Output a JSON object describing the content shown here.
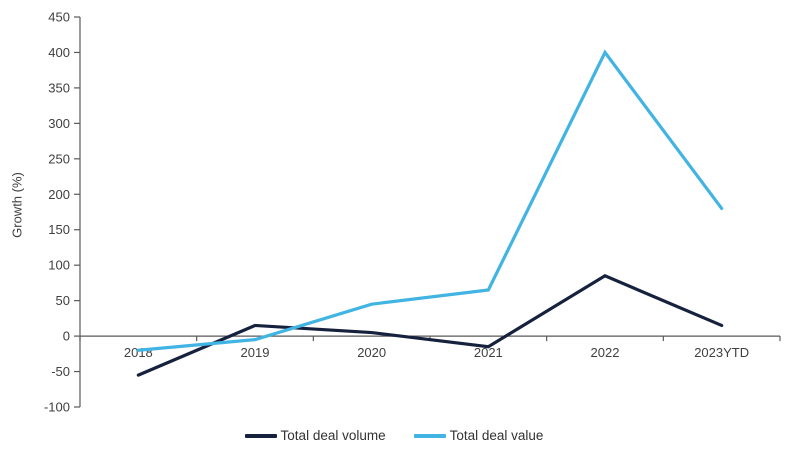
{
  "chart_data": {
    "type": "line",
    "title": "",
    "xlabel": "",
    "ylabel": "Growth (%)",
    "categories": [
      "2018",
      "2019",
      "2020",
      "2021",
      "2022",
      "2023YTD"
    ],
    "series": [
      {
        "name": "Total deal volume",
        "color": "#16213D",
        "values": [
          -55,
          15,
          5,
          -15,
          85,
          15
        ]
      },
      {
        "name": "Total deal value",
        "color": "#41B4E4",
        "values": [
          -20,
          -5,
          45,
          65,
          400,
          180
        ]
      }
    ],
    "ylim": [
      -100,
      450
    ],
    "ytick_step": 50,
    "grid": false,
    "legend_position": "bottom",
    "axis_color": "#595959",
    "tick_label_color": "#404040",
    "line_width": 3.2
  }
}
